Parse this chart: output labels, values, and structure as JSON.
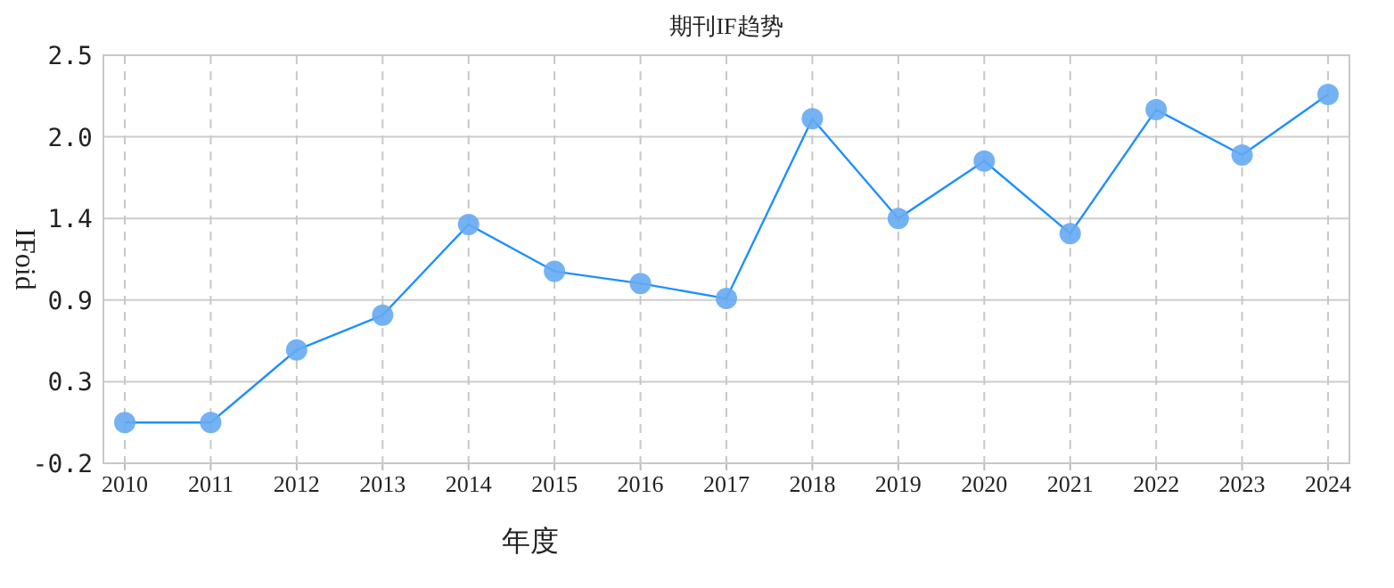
{
  "chart_data": {
    "type": "line",
    "title": "期刊IF趋势",
    "xlabel": "年度",
    "ylabel": "IFoid",
    "categories": [
      "2010",
      "2011",
      "2012",
      "2013",
      "2014",
      "2015",
      "2016",
      "2017",
      "2018",
      "2019",
      "2020",
      "2021",
      "2022",
      "2023",
      "2024"
    ],
    "series": [
      {
        "color": "#1e90ff",
        "values": [
          0.07,
          0.07,
          0.55,
          0.78,
          1.38,
          1.07,
          0.99,
          0.89,
          2.08,
          1.42,
          1.8,
          1.32,
          2.14,
          1.84,
          2.24
        ]
      }
    ],
    "ylim": [
      -0.2,
      2.5
    ],
    "yticks": [
      -0.2,
      {
        "value": 0.34,
        "label": "0.3"
      },
      {
        "value": 0.88,
        "label": "0.9"
      },
      {
        "value": 1.42,
        "label": "1.4"
      },
      {
        "value": 1.96,
        "label": "2.0"
      },
      2.5
    ],
    "grid": true,
    "marker": "circle",
    "line_style": "solid"
  }
}
